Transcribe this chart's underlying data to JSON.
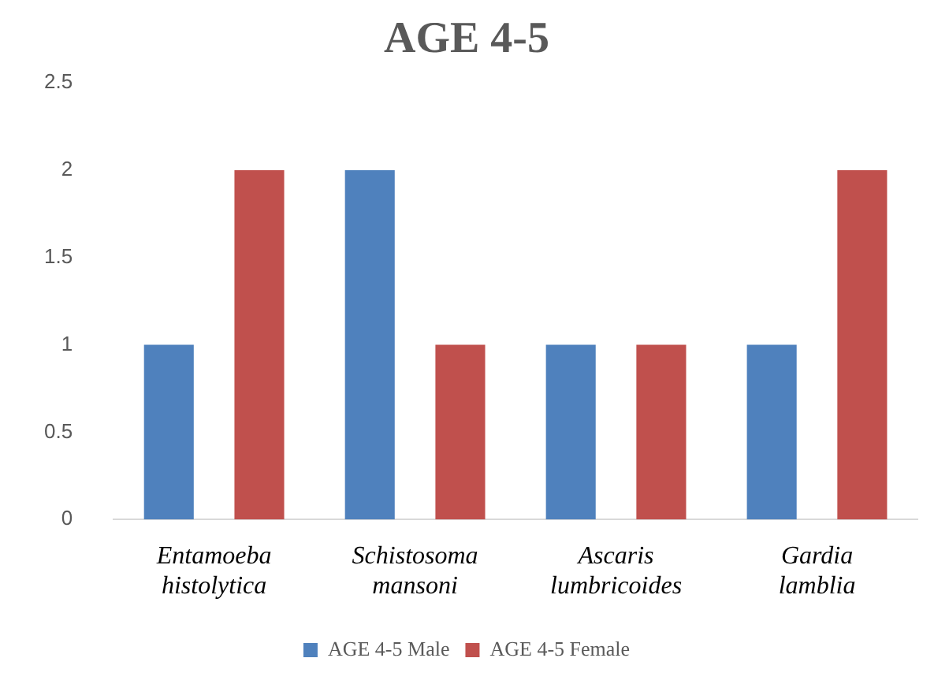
{
  "chart_data": {
    "type": "bar",
    "title": "AGE 4-5",
    "categories": [
      "Entamoeba histolytica",
      "Schistosoma mansoni",
      "Ascaris lumbricoides",
      "Gardia lamblia"
    ],
    "series": [
      {
        "name": "AGE 4-5 Male",
        "color": "#4f81bd",
        "values": [
          1,
          2,
          1,
          1
        ]
      },
      {
        "name": "AGE 4-5 Female",
        "color": "#c0504d",
        "values": [
          2,
          1,
          1,
          2
        ]
      }
    ],
    "ylim": [
      0,
      2.5
    ],
    "yticks": [
      0,
      0.5,
      1,
      1.5,
      2,
      2.5
    ],
    "grid": false,
    "legend": "bottom"
  }
}
